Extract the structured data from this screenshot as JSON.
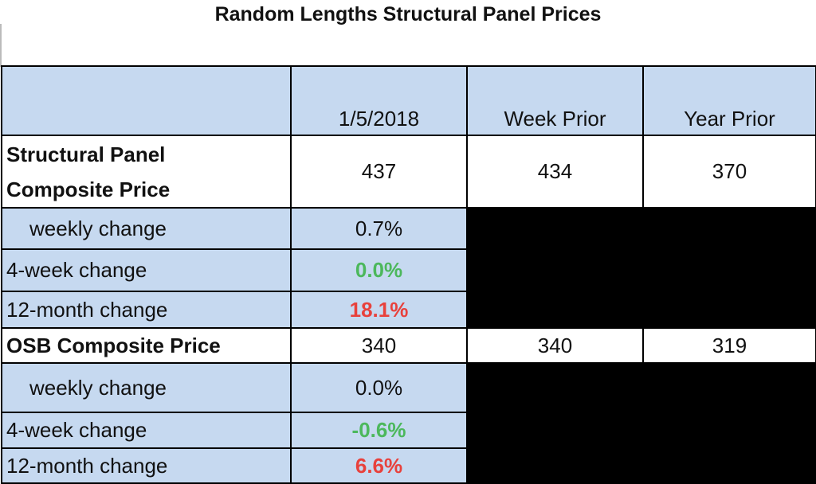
{
  "title": "Random Lengths Structural Panel Prices",
  "header": {
    "col1": "1/5/2018",
    "col2": "Week Prior",
    "col3": "Year Prior"
  },
  "structural": {
    "label_line1": "Structural Panel",
    "label_line2": "Composite Price",
    "current": "437",
    "week_prior": "434",
    "year_prior": "370",
    "weekly_label": "weekly change",
    "weekly_value": "0.7%",
    "four_week_label": "4-week change",
    "four_week_value": "0.0%",
    "twelve_month_label": "12-month change",
    "twelve_month_value": "18.1%"
  },
  "osb": {
    "label": "OSB Composite Price",
    "current": "340",
    "week_prior": "340",
    "year_prior": "319",
    "weekly_label": "weekly change",
    "weekly_value": "0.0%",
    "four_week_label": "4-week change",
    "four_week_value": "-0.6%",
    "twelve_month_label": "12-month change",
    "twelve_month_value": "6.6%"
  },
  "colors": {
    "header_fill": "#c6d9f0",
    "positive": "#4cb85c",
    "negative": "#e8413c",
    "blackout": "#000000"
  }
}
